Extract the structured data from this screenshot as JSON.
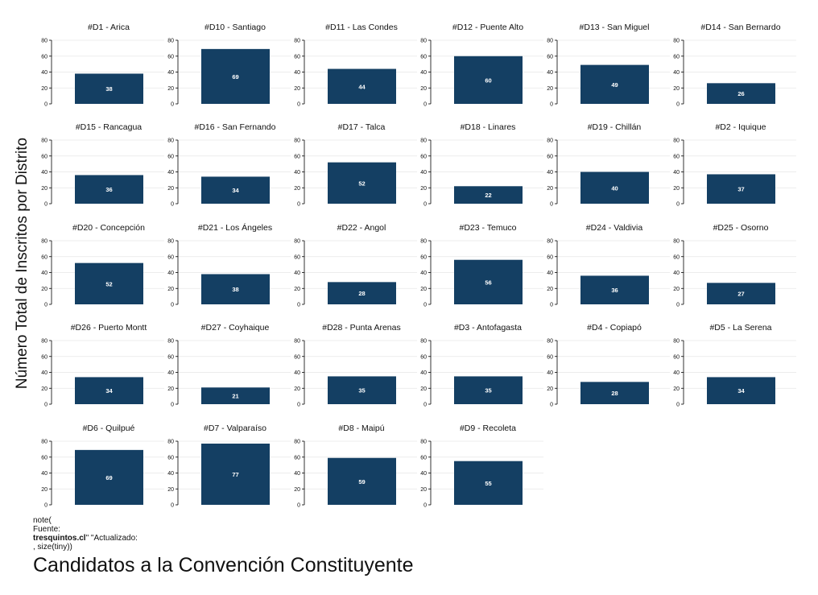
{
  "chart_data": {
    "type": "bar",
    "title": "Candidatos a la Convención Constituyente",
    "ylabel": "Número Total de Inscritos por Distrito",
    "ylim": [
      0,
      80
    ],
    "yticks": [
      "0",
      "20",
      "40",
      "60",
      "80"
    ],
    "grid": true,
    "bar_color": "#143f63",
    "panels": [
      {
        "name": "#D1 - Arica",
        "value": 38
      },
      {
        "name": "#D10 - Santiago",
        "value": 69
      },
      {
        "name": "#D11 - Las Condes",
        "value": 44
      },
      {
        "name": "#D12 - Puente Alto",
        "value": 60
      },
      {
        "name": "#D13 - San Miguel",
        "value": 49
      },
      {
        "name": "#D14 - San Bernardo",
        "value": 26
      },
      {
        "name": "#D15 - Rancagua",
        "value": 36
      },
      {
        "name": "#D16 - San Fernando",
        "value": 34
      },
      {
        "name": "#D17 - Talca",
        "value": 52
      },
      {
        "name": "#D18 - Linares",
        "value": 22
      },
      {
        "name": "#D19 - Chillán",
        "value": 40
      },
      {
        "name": "#D2 - Iquique",
        "value": 37
      },
      {
        "name": "#D20 - Concepción",
        "value": 52
      },
      {
        "name": "#D21 - Los Ángeles",
        "value": 38
      },
      {
        "name": "#D22 - Angol",
        "value": 28
      },
      {
        "name": "#D23 - Temuco",
        "value": 56
      },
      {
        "name": "#D24 - Valdivia",
        "value": 36
      },
      {
        "name": "#D25 - Osorno",
        "value": 27
      },
      {
        "name": "#D26 - Puerto Montt",
        "value": 34
      },
      {
        "name": "#D27 - Coyhaique",
        "value": 21
      },
      {
        "name": "#D28 - Punta Arenas",
        "value": 35
      },
      {
        "name": "#D3 - Antofagasta",
        "value": 35
      },
      {
        "name": "#D4 - Copiapó",
        "value": 28
      },
      {
        "name": "#D5 - La Serena",
        "value": 34
      },
      {
        "name": "#D6 - Quilpué",
        "value": 69
      },
      {
        "name": "#D7 - Valparaíso",
        "value": 77
      },
      {
        "name": "#D8 - Maipú",
        "value": 59
      },
      {
        "name": "#D9 - Recoleta",
        "value": 55
      }
    ]
  },
  "note": {
    "line1": "note(",
    "line2": "Fuente:",
    "line3_bold": "tresquintos.cl",
    "line3_rest": "\" \"Actualizado:",
    "line4": ", size(tiny))"
  }
}
